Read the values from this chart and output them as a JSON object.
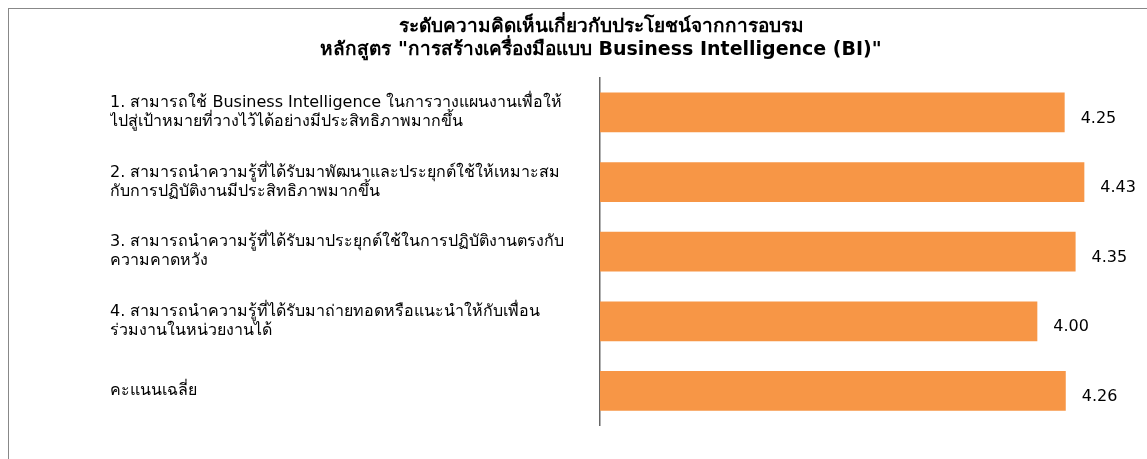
{
  "chart_data": {
    "type": "bar",
    "orientation": "horizontal",
    "title": [
      "ระดับความคิดเห็นเกี่ยวกับประโยชน์จากการอบรม",
      "หลักสูตร \"การสร้างเครื่องมือแบบ Business Intelligence (BI)\""
    ],
    "categories": [
      "1. สามารถใช้ Business Intelligence ในการวางแผนงานเพื่อให้ไปสู่เป้าหมายที่วางไว้ได้อย่างมีประสิทธิภาพมากขึ้น",
      "2. สามารถนำความรู้ที่ได้รับมาพัฒนาและประยุกต์ใช้ให้เหมาะสมกับการปฏิบัติงานมีประสิทธิภาพมากขึ้น",
      "3. สามารถนำความรู้ที่ได้รับมาประยุกต์ใช้ในการปฏิบัติงานตรงกับความคาดหวัง",
      "4. สามารถนำความรู้ที่ได้รับมาถ่ายทอดหรือแนะนำให้กับเพื่อนร่วมงานในหน่วยงานได้",
      "คะแนนเฉลี่ย"
    ],
    "values": [
      4.25,
      4.43,
      4.35,
      4.0,
      4.26
    ],
    "color": "#f79646",
    "value_labels": [
      "4.25",
      "4.43",
      "4.35",
      "4.00",
      "4.26"
    ],
    "tick_labels": "y",
    "grid": false,
    "legend": false
  }
}
